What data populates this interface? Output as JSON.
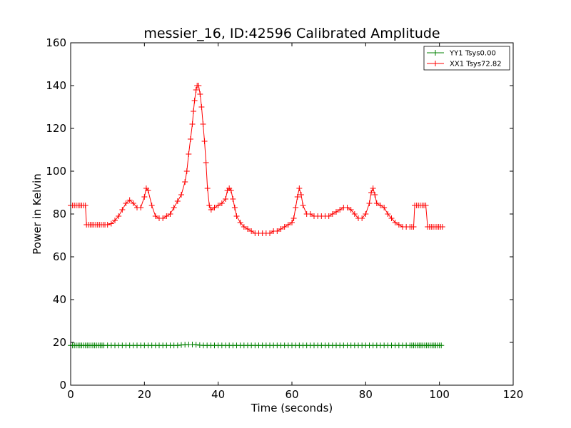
{
  "chart_data": {
    "type": "line",
    "title": "messier_16, ID:42596 Calibrated Amplitude",
    "xlabel": "Time (seconds)",
    "ylabel": "Power in Kelvin",
    "xlim": [
      0,
      120
    ],
    "ylim": [
      0,
      160
    ],
    "xticks": [
      "0",
      "20",
      "40",
      "60",
      "80",
      "100",
      "120"
    ],
    "yticks": [
      "0",
      "20",
      "40",
      "60",
      "80",
      "100",
      "120",
      "140",
      "160"
    ],
    "grid": false,
    "legend_position": "top-right",
    "marker": "+",
    "series": [
      {
        "name": "YY1 Tsys0.00",
        "color": "#008000",
        "points": [
          [
            0.0,
            18.6
          ],
          [
            0.5,
            18.6
          ],
          [
            1.0,
            18.6
          ],
          [
            1.5,
            18.6
          ],
          [
            2.0,
            18.6
          ],
          [
            2.5,
            18.6
          ],
          [
            3.0,
            18.6
          ],
          [
            3.5,
            18.6
          ],
          [
            4.0,
            18.6
          ],
          [
            4.5,
            18.6
          ],
          [
            5.0,
            18.6
          ],
          [
            5.5,
            18.6
          ],
          [
            6.0,
            18.6
          ],
          [
            6.5,
            18.6
          ],
          [
            7.0,
            18.6
          ],
          [
            7.5,
            18.6
          ],
          [
            8.0,
            18.6
          ],
          [
            8.5,
            18.6
          ],
          [
            9.0,
            18.6
          ],
          [
            10,
            18.6
          ],
          [
            11,
            18.6
          ],
          [
            12,
            18.6
          ],
          [
            13,
            18.6
          ],
          [
            14,
            18.6
          ],
          [
            15,
            18.6
          ],
          [
            16,
            18.6
          ],
          [
            17,
            18.6
          ],
          [
            18,
            18.6
          ],
          [
            19,
            18.6
          ],
          [
            20,
            18.6
          ],
          [
            21,
            18.6
          ],
          [
            22,
            18.6
          ],
          [
            23,
            18.6
          ],
          [
            24,
            18.6
          ],
          [
            25,
            18.6
          ],
          [
            26,
            18.6
          ],
          [
            27,
            18.6
          ],
          [
            28,
            18.6
          ],
          [
            29,
            18.6
          ],
          [
            30,
            18.8
          ],
          [
            31,
            18.9
          ],
          [
            32,
            19.0
          ],
          [
            33,
            19.0
          ],
          [
            34,
            18.9
          ],
          [
            35,
            18.7
          ],
          [
            36,
            18.6
          ],
          [
            37,
            18.6
          ],
          [
            38,
            18.6
          ],
          [
            39,
            18.6
          ],
          [
            40,
            18.6
          ],
          [
            41,
            18.6
          ],
          [
            42,
            18.6
          ],
          [
            43,
            18.6
          ],
          [
            44,
            18.6
          ],
          [
            45,
            18.6
          ],
          [
            46,
            18.6
          ],
          [
            47,
            18.6
          ],
          [
            48,
            18.6
          ],
          [
            49,
            18.6
          ],
          [
            50,
            18.6
          ],
          [
            51,
            18.6
          ],
          [
            52,
            18.6
          ],
          [
            53,
            18.6
          ],
          [
            54,
            18.6
          ],
          [
            55,
            18.6
          ],
          [
            56,
            18.6
          ],
          [
            57,
            18.6
          ],
          [
            58,
            18.6
          ],
          [
            59,
            18.6
          ],
          [
            60,
            18.6
          ],
          [
            61,
            18.6
          ],
          [
            62,
            18.6
          ],
          [
            63,
            18.6
          ],
          [
            64,
            18.6
          ],
          [
            65,
            18.6
          ],
          [
            66,
            18.6
          ],
          [
            67,
            18.6
          ],
          [
            68,
            18.6
          ],
          [
            69,
            18.6
          ],
          [
            70,
            18.6
          ],
          [
            71,
            18.6
          ],
          [
            72,
            18.6
          ],
          [
            73,
            18.6
          ],
          [
            74,
            18.6
          ],
          [
            75,
            18.6
          ],
          [
            76,
            18.6
          ],
          [
            77,
            18.6
          ],
          [
            78,
            18.6
          ],
          [
            79,
            18.6
          ],
          [
            80,
            18.6
          ],
          [
            81,
            18.6
          ],
          [
            82,
            18.6
          ],
          [
            83,
            18.6
          ],
          [
            84,
            18.6
          ],
          [
            85,
            18.6
          ],
          [
            86,
            18.6
          ],
          [
            87,
            18.6
          ],
          [
            88,
            18.6
          ],
          [
            89,
            18.6
          ],
          [
            90,
            18.6
          ],
          [
            91,
            18.6
          ],
          [
            92,
            18.6
          ],
          [
            92.5,
            18.6
          ],
          [
            93,
            18.6
          ],
          [
            93.5,
            18.6
          ],
          [
            94,
            18.6
          ],
          [
            94.5,
            18.6
          ],
          [
            95,
            18.6
          ],
          [
            95.5,
            18.6
          ],
          [
            96,
            18.6
          ],
          [
            96.5,
            18.6
          ],
          [
            97,
            18.6
          ],
          [
            97.5,
            18.6
          ],
          [
            98,
            18.6
          ],
          [
            98.5,
            18.6
          ],
          [
            99,
            18.6
          ],
          [
            99.5,
            18.6
          ],
          [
            100,
            18.6
          ],
          [
            100.5,
            18.6
          ]
        ]
      },
      {
        "name": "XX1 Tsys72.82",
        "color": "#ff0000",
        "points": [
          [
            0.0,
            84
          ],
          [
            0.5,
            84
          ],
          [
            1.0,
            84
          ],
          [
            1.5,
            84
          ],
          [
            2.0,
            84
          ],
          [
            2.5,
            84
          ],
          [
            3.0,
            84
          ],
          [
            3.5,
            84
          ],
          [
            4.0,
            84
          ],
          [
            4.3,
            75
          ],
          [
            4.8,
            75
          ],
          [
            5.3,
            75
          ],
          [
            5.8,
            75
          ],
          [
            6.3,
            75
          ],
          [
            6.8,
            75
          ],
          [
            7.3,
            75
          ],
          [
            7.8,
            75
          ],
          [
            8.3,
            75
          ],
          [
            8.8,
            75
          ],
          [
            9.3,
            75
          ],
          [
            10,
            75
          ],
          [
            11,
            75.5
          ],
          [
            12,
            77
          ],
          [
            13,
            79
          ],
          [
            14,
            82
          ],
          [
            15,
            85
          ],
          [
            16,
            86.5
          ],
          [
            17,
            85
          ],
          [
            18,
            83
          ],
          [
            19,
            83
          ],
          [
            20,
            88
          ],
          [
            20.5,
            92
          ],
          [
            21,
            91
          ],
          [
            22,
            84
          ],
          [
            23,
            79
          ],
          [
            24,
            78
          ],
          [
            25,
            78
          ],
          [
            26,
            79
          ],
          [
            27,
            80
          ],
          [
            28,
            83
          ],
          [
            29,
            86
          ],
          [
            30,
            89
          ],
          [
            31,
            95
          ],
          [
            31.5,
            100
          ],
          [
            32,
            108
          ],
          [
            32.5,
            115
          ],
          [
            33,
            122
          ],
          [
            33.3,
            128
          ],
          [
            33.6,
            133
          ],
          [
            34.0,
            138
          ],
          [
            34.3,
            140
          ],
          [
            34.7,
            140
          ],
          [
            35.1,
            136
          ],
          [
            35.5,
            130
          ],
          [
            35.9,
            122
          ],
          [
            36.3,
            114
          ],
          [
            36.7,
            104
          ],
          [
            37.1,
            92
          ],
          [
            37.6,
            84
          ],
          [
            38.1,
            82
          ],
          [
            39,
            83
          ],
          [
            40,
            84
          ],
          [
            41,
            85
          ],
          [
            42,
            87
          ],
          [
            42.5,
            91
          ],
          [
            43,
            92
          ],
          [
            43.5,
            91
          ],
          [
            44,
            87
          ],
          [
            44.5,
            83
          ],
          [
            45,
            79
          ],
          [
            46,
            76
          ],
          [
            47,
            74
          ],
          [
            48,
            73
          ],
          [
            49,
            72
          ],
          [
            50,
            71
          ],
          [
            51,
            71
          ],
          [
            52,
            71
          ],
          [
            53,
            71
          ],
          [
            54,
            71
          ],
          [
            55,
            72
          ],
          [
            56,
            72
          ],
          [
            57,
            73
          ],
          [
            58,
            74
          ],
          [
            59,
            75
          ],
          [
            60,
            76
          ],
          [
            60.5,
            78
          ],
          [
            61,
            83
          ],
          [
            61.5,
            88
          ],
          [
            62,
            92
          ],
          [
            62.5,
            89
          ],
          [
            63,
            84
          ],
          [
            64,
            80
          ],
          [
            65,
            80
          ],
          [
            66,
            79
          ],
          [
            67,
            79
          ],
          [
            68,
            79
          ],
          [
            69,
            79
          ],
          [
            70,
            79
          ],
          [
            71,
            80
          ],
          [
            72,
            81
          ],
          [
            73,
            82
          ],
          [
            74,
            83
          ],
          [
            75,
            83
          ],
          [
            76,
            82
          ],
          [
            77,
            80
          ],
          [
            78,
            78
          ],
          [
            79,
            78
          ],
          [
            80,
            80
          ],
          [
            81,
            85
          ],
          [
            81.5,
            90
          ],
          [
            82,
            92
          ],
          [
            82.5,
            89
          ],
          [
            83,
            85
          ],
          [
            84,
            84
          ],
          [
            85,
            83
          ],
          [
            86,
            80
          ],
          [
            87,
            78
          ],
          [
            88,
            76
          ],
          [
            89,
            75
          ],
          [
            90,
            74
          ],
          [
            91,
            74
          ],
          [
            92,
            74
          ],
          [
            92.5,
            74
          ],
          [
            93,
            74
          ],
          [
            93.3,
            84
          ],
          [
            93.8,
            84
          ],
          [
            94.3,
            84
          ],
          [
            94.8,
            84
          ],
          [
            95.3,
            84
          ],
          [
            95.8,
            84
          ],
          [
            96.3,
            84
          ],
          [
            96.8,
            74
          ],
          [
            97.3,
            74
          ],
          [
            97.8,
            74
          ],
          [
            98.3,
            74
          ],
          [
            98.8,
            74
          ],
          [
            99.3,
            74
          ],
          [
            99.8,
            74
          ],
          [
            100.3,
            74
          ],
          [
            100.8,
            74
          ]
        ]
      }
    ]
  }
}
